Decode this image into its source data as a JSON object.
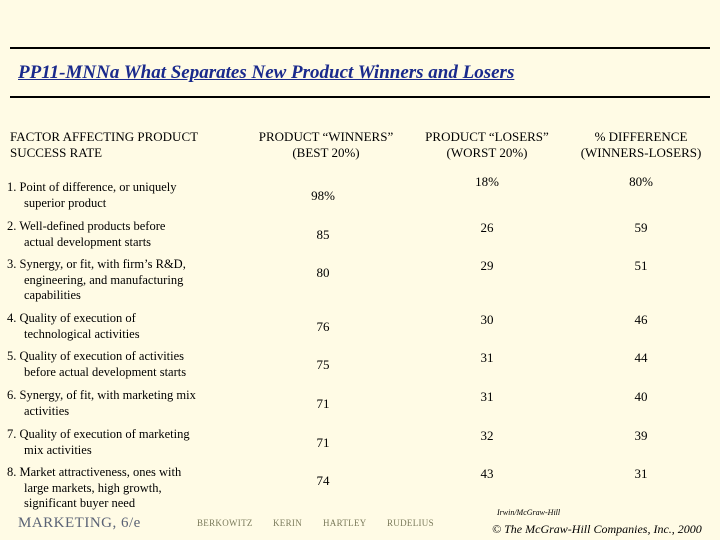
{
  "title": "PP11-MNNa  What Separates New Product Winners and Losers",
  "headers": {
    "factor": [
      "FACTOR AFFECTING PRODUCT",
      "SUCCESS RATE"
    ],
    "winners": [
      "PRODUCT “WINNERS”",
      "(BEST 20%)"
    ],
    "losers": [
      "PRODUCT “LOSERS”",
      "(WORST 20%)"
    ],
    "difference": [
      "% DIFFERENCE",
      "(WINNERS-LOSERS)"
    ]
  },
  "rows": [
    {
      "lines": [
        "1. Point of difference, or uniquely",
        "superior product"
      ],
      "winners": "98%",
      "losers": "18%",
      "difference": "80%"
    },
    {
      "lines": [
        "2. Well-defined products before",
        "actual development starts"
      ],
      "winners": "85",
      "losers": "26",
      "difference": "59"
    },
    {
      "lines": [
        "3. Synergy, or fit, with firm’s R&D,",
        "engineering, and manufacturing",
        "capabilities"
      ],
      "winners": "80",
      "losers": "29",
      "difference": "51"
    },
    {
      "lines": [
        "4. Quality of execution of",
        "technological activities"
      ],
      "winners": "76",
      "losers": "30",
      "difference": "46"
    },
    {
      "lines": [
        "5. Quality of execution of activities",
        "before actual development starts"
      ],
      "winners": "75",
      "losers": "31",
      "difference": "44"
    },
    {
      "lines": [
        "6. Synergy, of fit, with marketing mix",
        "activities"
      ],
      "winners": "71",
      "losers": "31",
      "difference": "40"
    },
    {
      "lines": [
        "7. Quality of execution of marketing",
        "mix activities"
      ],
      "winners": "71",
      "losers": "32",
      "difference": "39"
    },
    {
      "lines": [
        "8. Market attractiveness, ones with",
        "large markets, high growth,",
        "significant buyer need"
      ],
      "winners": "74",
      "losers": "43",
      "difference": "31"
    }
  ],
  "footer": {
    "book": "MARKETING, 6/e",
    "authors": [
      "BERKOWITZ",
      "KERIN",
      "HARTLEY",
      "RUDELIUS"
    ],
    "publisher_logo": "Irwin/McGraw-Hill",
    "copyright": "© The McGraw-Hill Companies, Inc., 2000"
  }
}
